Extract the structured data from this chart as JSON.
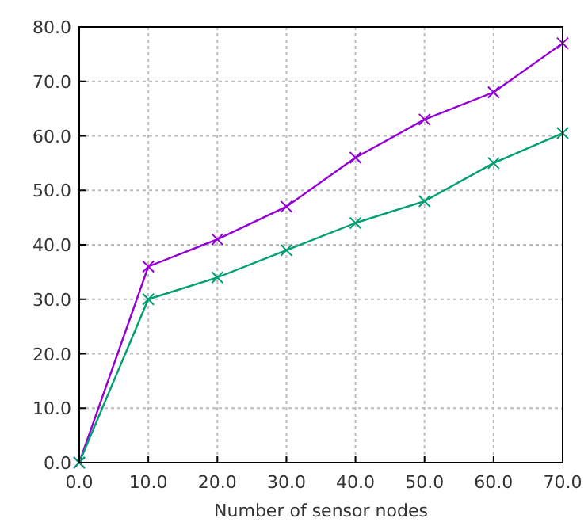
{
  "chart_data": {
    "type": "line",
    "xlabel": "Number of sensor nodes",
    "x": [
      0,
      10,
      20,
      30,
      40,
      50,
      60,
      70
    ],
    "series": [
      {
        "color": "#9400d3",
        "marker": "cross",
        "values": [
          0,
          36,
          41,
          47,
          56,
          63,
          68,
          77
        ]
      },
      {
        "color": "#009e73",
        "marker": "cross",
        "values": [
          0,
          30,
          34,
          39,
          44,
          48,
          55,
          60.5
        ]
      }
    ],
    "xlim": [
      0,
      70
    ],
    "ylim": [
      0,
      80
    ],
    "xticks": [
      {
        "value": 0,
        "label": "0.0"
      },
      {
        "value": 10,
        "label": "10.0"
      },
      {
        "value": 20,
        "label": "20.0"
      },
      {
        "value": 30,
        "label": "30.0"
      },
      {
        "value": 40,
        "label": "40.0"
      },
      {
        "value": 50,
        "label": "50.0"
      },
      {
        "value": 60,
        "label": "60.0"
      },
      {
        "value": 70,
        "label": "70.0"
      }
    ],
    "yticks": [
      {
        "value": 0,
        "label": "0.0"
      },
      {
        "value": 10,
        "label": "10.0"
      },
      {
        "value": 20,
        "label": "20.0"
      },
      {
        "value": 30,
        "label": "30.0"
      },
      {
        "value": 40,
        "label": "40.0"
      },
      {
        "value": 50,
        "label": "50.0"
      },
      {
        "value": 60,
        "label": "60.0"
      },
      {
        "value": 70,
        "label": "70.0"
      },
      {
        "value": 80,
        "label": "80.0"
      }
    ],
    "grid": true
  }
}
